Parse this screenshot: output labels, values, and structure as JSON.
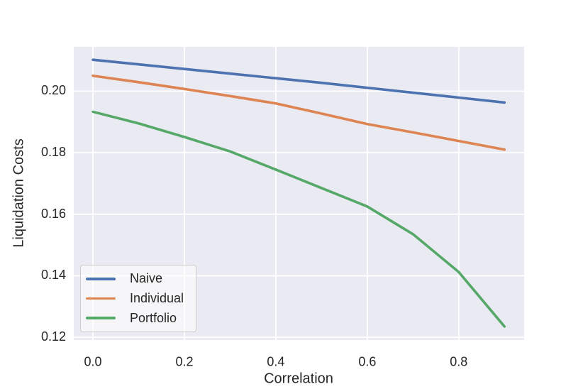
{
  "figure": {
    "background": "#ffffff",
    "plot_background": "#eaeaf2",
    "grid_color": "#ffffff",
    "text_color": "#262626"
  },
  "chart_data": {
    "type": "line",
    "title": "",
    "xlabel": "Correlation",
    "ylabel": "Liquidation Costs",
    "x": [
      0.0,
      0.1,
      0.2,
      0.3,
      0.4,
      0.5,
      0.6,
      0.7,
      0.8,
      0.9
    ],
    "series": [
      {
        "name": "Naive",
        "color": "#4c72b0",
        "values": [
          0.2102,
          0.2087,
          0.2072,
          0.2057,
          0.2042,
          0.2027,
          0.2011,
          0.1995,
          0.1979,
          0.1963
        ]
      },
      {
        "name": "Individual",
        "color": "#dd8452",
        "values": [
          0.205,
          0.2029,
          0.2007,
          0.1984,
          0.196,
          0.1927,
          0.1893,
          0.1866,
          0.1838,
          0.181
        ]
      },
      {
        "name": "Portfolio",
        "color": "#55a868",
        "values": [
          0.1933,
          0.1895,
          0.1851,
          0.1804,
          0.1745,
          0.1685,
          0.1625,
          0.1535,
          0.1412,
          0.1235
        ]
      }
    ],
    "xlim": [
      -0.042,
      0.943
    ],
    "ylim": [
      0.1191,
      0.2144
    ],
    "xticks": {
      "values": [
        0.0,
        0.2,
        0.4,
        0.6,
        0.8
      ],
      "labels": [
        "0.0",
        "0.2",
        "0.4",
        "0.6",
        "0.8"
      ]
    },
    "yticks": {
      "values": [
        0.12,
        0.14,
        0.16,
        0.18,
        0.2
      ],
      "labels": [
        "0.12",
        "0.14",
        "0.16",
        "0.18",
        "0.20"
      ]
    },
    "grid": true,
    "legend_position": "lower left",
    "line_width": 3.6
  }
}
